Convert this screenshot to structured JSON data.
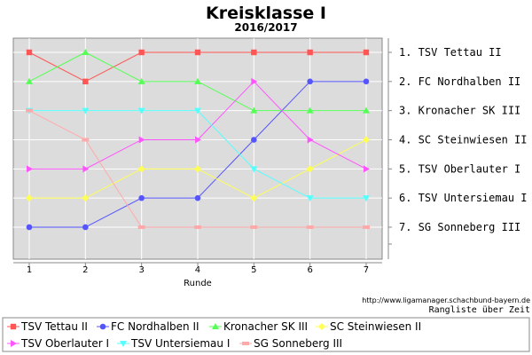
{
  "chart_data": {
    "type": "line",
    "title": "Kreisklasse I",
    "subtitle": "2016/2017",
    "xlabel": "Runde",
    "ylabel": "",
    "x": [
      1,
      2,
      3,
      4,
      5,
      6,
      7
    ],
    "x_ticks": [
      "1",
      "2",
      "3",
      "4",
      "5",
      "6",
      "7"
    ],
    "y_inverted": true,
    "ylim": [
      1,
      7
    ],
    "grid": true,
    "right_labels": [
      "1. TSV Tettau II",
      "2. FC Nordhalben II",
      "3. Kronacher SK III",
      "4. SC Steinwiesen II",
      "5. TSV Oberlauter I",
      "6. TSV Untersiemau I",
      "7. SG Sonneberg III"
    ],
    "source_url": "http://www.ligamanager.schachbund-bayern.de",
    "caption": "Rangliste über Zeit",
    "legend_position": "bottom",
    "series": [
      {
        "name": "TSV Tettau II",
        "color": "#ff5555",
        "marker": "square",
        "values": [
          1,
          2,
          1,
          1,
          1,
          1,
          1
        ]
      },
      {
        "name": "FC Nordhalben II",
        "color": "#5555ff",
        "marker": "circle",
        "values": [
          7,
          7,
          6,
          6,
          4,
          2,
          2
        ]
      },
      {
        "name": "Kronacher SK III",
        "color": "#55ff55",
        "marker": "triangle-up",
        "values": [
          2,
          1,
          2,
          2,
          3,
          3,
          3
        ]
      },
      {
        "name": "SC Steinwiesen II",
        "color": "#ffff55",
        "marker": "diamond",
        "values": [
          6,
          6,
          5,
          5,
          6,
          5,
          4
        ]
      },
      {
        "name": "TSV Oberlauter I",
        "color": "#ff55ff",
        "marker": "arrow-right",
        "values": [
          5,
          5,
          4,
          4,
          2,
          4,
          5
        ]
      },
      {
        "name": "TSV Untersiemau I",
        "color": "#55ffff",
        "marker": "triangle-down",
        "values": [
          3,
          3,
          3,
          3,
          5,
          6,
          6
        ]
      },
      {
        "name": "SG Sonneberg III",
        "color": "#ffaaaa",
        "marker": "rect",
        "values": [
          3,
          4,
          7,
          7,
          7,
          7,
          7
        ]
      }
    ]
  }
}
